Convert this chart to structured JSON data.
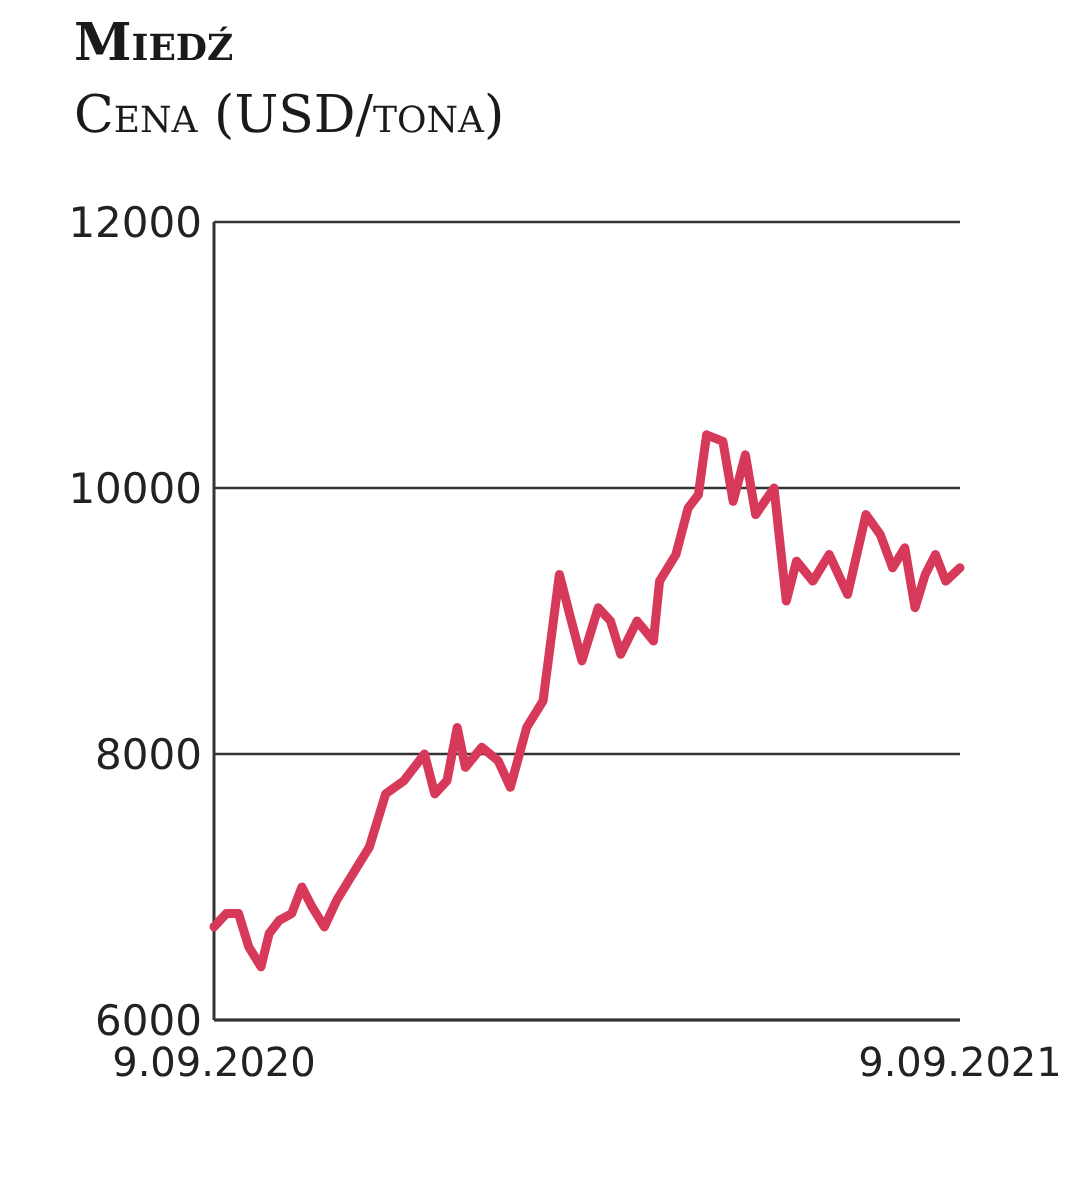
{
  "chart_data": {
    "type": "line",
    "title": "Miedź",
    "subtitle": "Cena (USD/tona)",
    "x": [
      "2020-09-09",
      "2020-09-15",
      "2020-09-21",
      "2020-09-26",
      "2020-10-02",
      "2020-10-06",
      "2020-10-11",
      "2020-10-17",
      "2020-10-22",
      "2020-10-27",
      "2020-11-02",
      "2020-11-08",
      "2020-11-16",
      "2020-11-24",
      "2020-12-02",
      "2020-12-11",
      "2020-12-21",
      "2020-12-26",
      "2021-01-01",
      "2021-01-06",
      "2021-01-10",
      "2021-01-18",
      "2021-01-26",
      "2021-02-01",
      "2021-02-09",
      "2021-02-17",
      "2021-02-25",
      "2021-03-02",
      "2021-03-08",
      "2021-03-16",
      "2021-03-22",
      "2021-03-27",
      "2021-04-04",
      "2021-04-12",
      "2021-04-15",
      "2021-04-23",
      "2021-04-29",
      "2021-05-04",
      "2021-05-08",
      "2021-05-16",
      "2021-05-21",
      "2021-05-27",
      "2021-06-01",
      "2021-06-10",
      "2021-06-16",
      "2021-06-21",
      "2021-06-29",
      "2021-07-07",
      "2021-07-16",
      "2021-07-25",
      "2021-08-01",
      "2021-08-07",
      "2021-08-13",
      "2021-08-18",
      "2021-08-23",
      "2021-08-28",
      "2021-09-02",
      "2021-09-09"
    ],
    "series": [
      {
        "color": "#d6395a",
        "values": [
          6700,
          6800,
          6800,
          6550,
          6400,
          6650,
          6750,
          6800,
          7000,
          6850,
          6700,
          6900,
          7100,
          7300,
          7700,
          7800,
          8000,
          7700,
          7800,
          8200,
          7900,
          8050,
          7950,
          7750,
          8200,
          8400,
          9350,
          9050,
          8700,
          9100,
          9000,
          8750,
          9000,
          8850,
          9300,
          9500,
          9850,
          9950,
          10400,
          10350,
          9900,
          10250,
          9800,
          10000,
          9150,
          9450,
          9300,
          9500,
          9200,
          9800,
          9650,
          9400,
          9550,
          9100,
          9350,
          9500,
          9300,
          9400
        ]
      }
    ],
    "xlim": [
      "2020-09-09",
      "2021-09-09"
    ],
    "xticks": [
      {
        "value": "2020-09-09",
        "label": "9.09.2020"
      },
      {
        "value": "2021-09-09",
        "label": "9.09.2021"
      }
    ],
    "ylim": [
      6000,
      12000
    ],
    "yticks": [
      6000,
      8000,
      10000,
      12000
    ],
    "grid": "y",
    "marker": "none",
    "line_style": "solid"
  }
}
